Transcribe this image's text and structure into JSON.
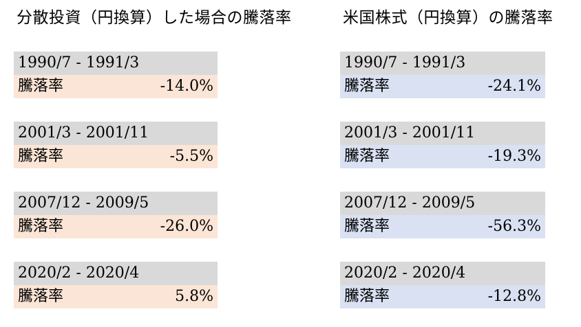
{
  "left_panel": {
    "title": "分散投資（円換算）した場合の騰落率",
    "metric_label": "騰落率",
    "header_fill": "#d9d9d9",
    "row_fill": "#fbe5d6",
    "entries": [
      {
        "period": "1990/7 - 1991/3",
        "change": "-14.0%"
      },
      {
        "period": "2001/3 - 2001/11",
        "change": "-5.5%"
      },
      {
        "period": "2007/12 - 2009/5",
        "change": "-26.0%"
      },
      {
        "period": "2020/2 - 2020/4",
        "change": "5.8%"
      }
    ]
  },
  "right_panel": {
    "title": "米国株式（円換算）の騰落率",
    "metric_label": "騰落率",
    "header_fill": "#d9d9d9",
    "row_fill": "#d9e1f2",
    "entries": [
      {
        "period": "1990/7 - 1991/3",
        "change": "-24.1%"
      },
      {
        "period": "2001/3 - 2001/11",
        "change": "-19.3%"
      },
      {
        "period": "2007/12 - 2009/5",
        "change": "-56.3%"
      },
      {
        "period": "2020/2 - 2020/4",
        "change": "-12.8%"
      }
    ]
  }
}
